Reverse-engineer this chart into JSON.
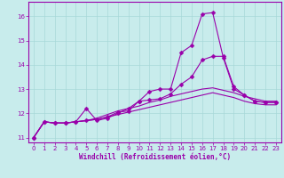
{
  "xlabel": "Windchill (Refroidissement éolien,°C)",
  "ylabel": "",
  "xlim": [
    -0.5,
    23.5
  ],
  "ylim": [
    10.8,
    16.6
  ],
  "yticks": [
    11,
    12,
    13,
    14,
    15,
    16
  ],
  "xticks": [
    0,
    1,
    2,
    3,
    4,
    5,
    6,
    7,
    8,
    9,
    10,
    11,
    12,
    13,
    14,
    15,
    16,
    17,
    18,
    19,
    20,
    21,
    22,
    23
  ],
  "background_color": "#c8ecec",
  "grid_color": "#a8d8d8",
  "line_color": "#9900aa",
  "series": [
    [
      11.0,
      11.65,
      11.6,
      11.6,
      11.65,
      12.2,
      11.7,
      11.8,
      12.0,
      12.2,
      12.5,
      12.9,
      13.0,
      13.0,
      14.5,
      14.8,
      16.1,
      16.15,
      14.3,
      13.0,
      12.75,
      12.5,
      12.45,
      12.45
    ],
    [
      11.0,
      11.65,
      11.6,
      11.6,
      11.65,
      11.7,
      11.75,
      11.85,
      12.05,
      12.1,
      12.5,
      12.55,
      12.6,
      12.8,
      13.2,
      13.5,
      14.2,
      14.35,
      14.35,
      13.1,
      12.75,
      12.5,
      12.45,
      12.45
    ],
    [
      11.0,
      11.65,
      11.6,
      11.6,
      11.65,
      11.7,
      11.8,
      11.95,
      12.1,
      12.2,
      12.3,
      12.45,
      12.55,
      12.7,
      12.8,
      12.9,
      13.0,
      13.05,
      12.95,
      12.85,
      12.7,
      12.6,
      12.5,
      12.5
    ],
    [
      11.0,
      11.65,
      11.6,
      11.6,
      11.65,
      11.7,
      11.75,
      11.85,
      11.95,
      12.05,
      12.15,
      12.25,
      12.35,
      12.45,
      12.55,
      12.65,
      12.75,
      12.85,
      12.75,
      12.65,
      12.5,
      12.4,
      12.35,
      12.35
    ]
  ],
  "has_markers": [
    true,
    true,
    false,
    false
  ],
  "line_width": [
    0.8,
    0.8,
    0.8,
    0.8
  ],
  "marker_size": 2.5,
  "marker": "D"
}
